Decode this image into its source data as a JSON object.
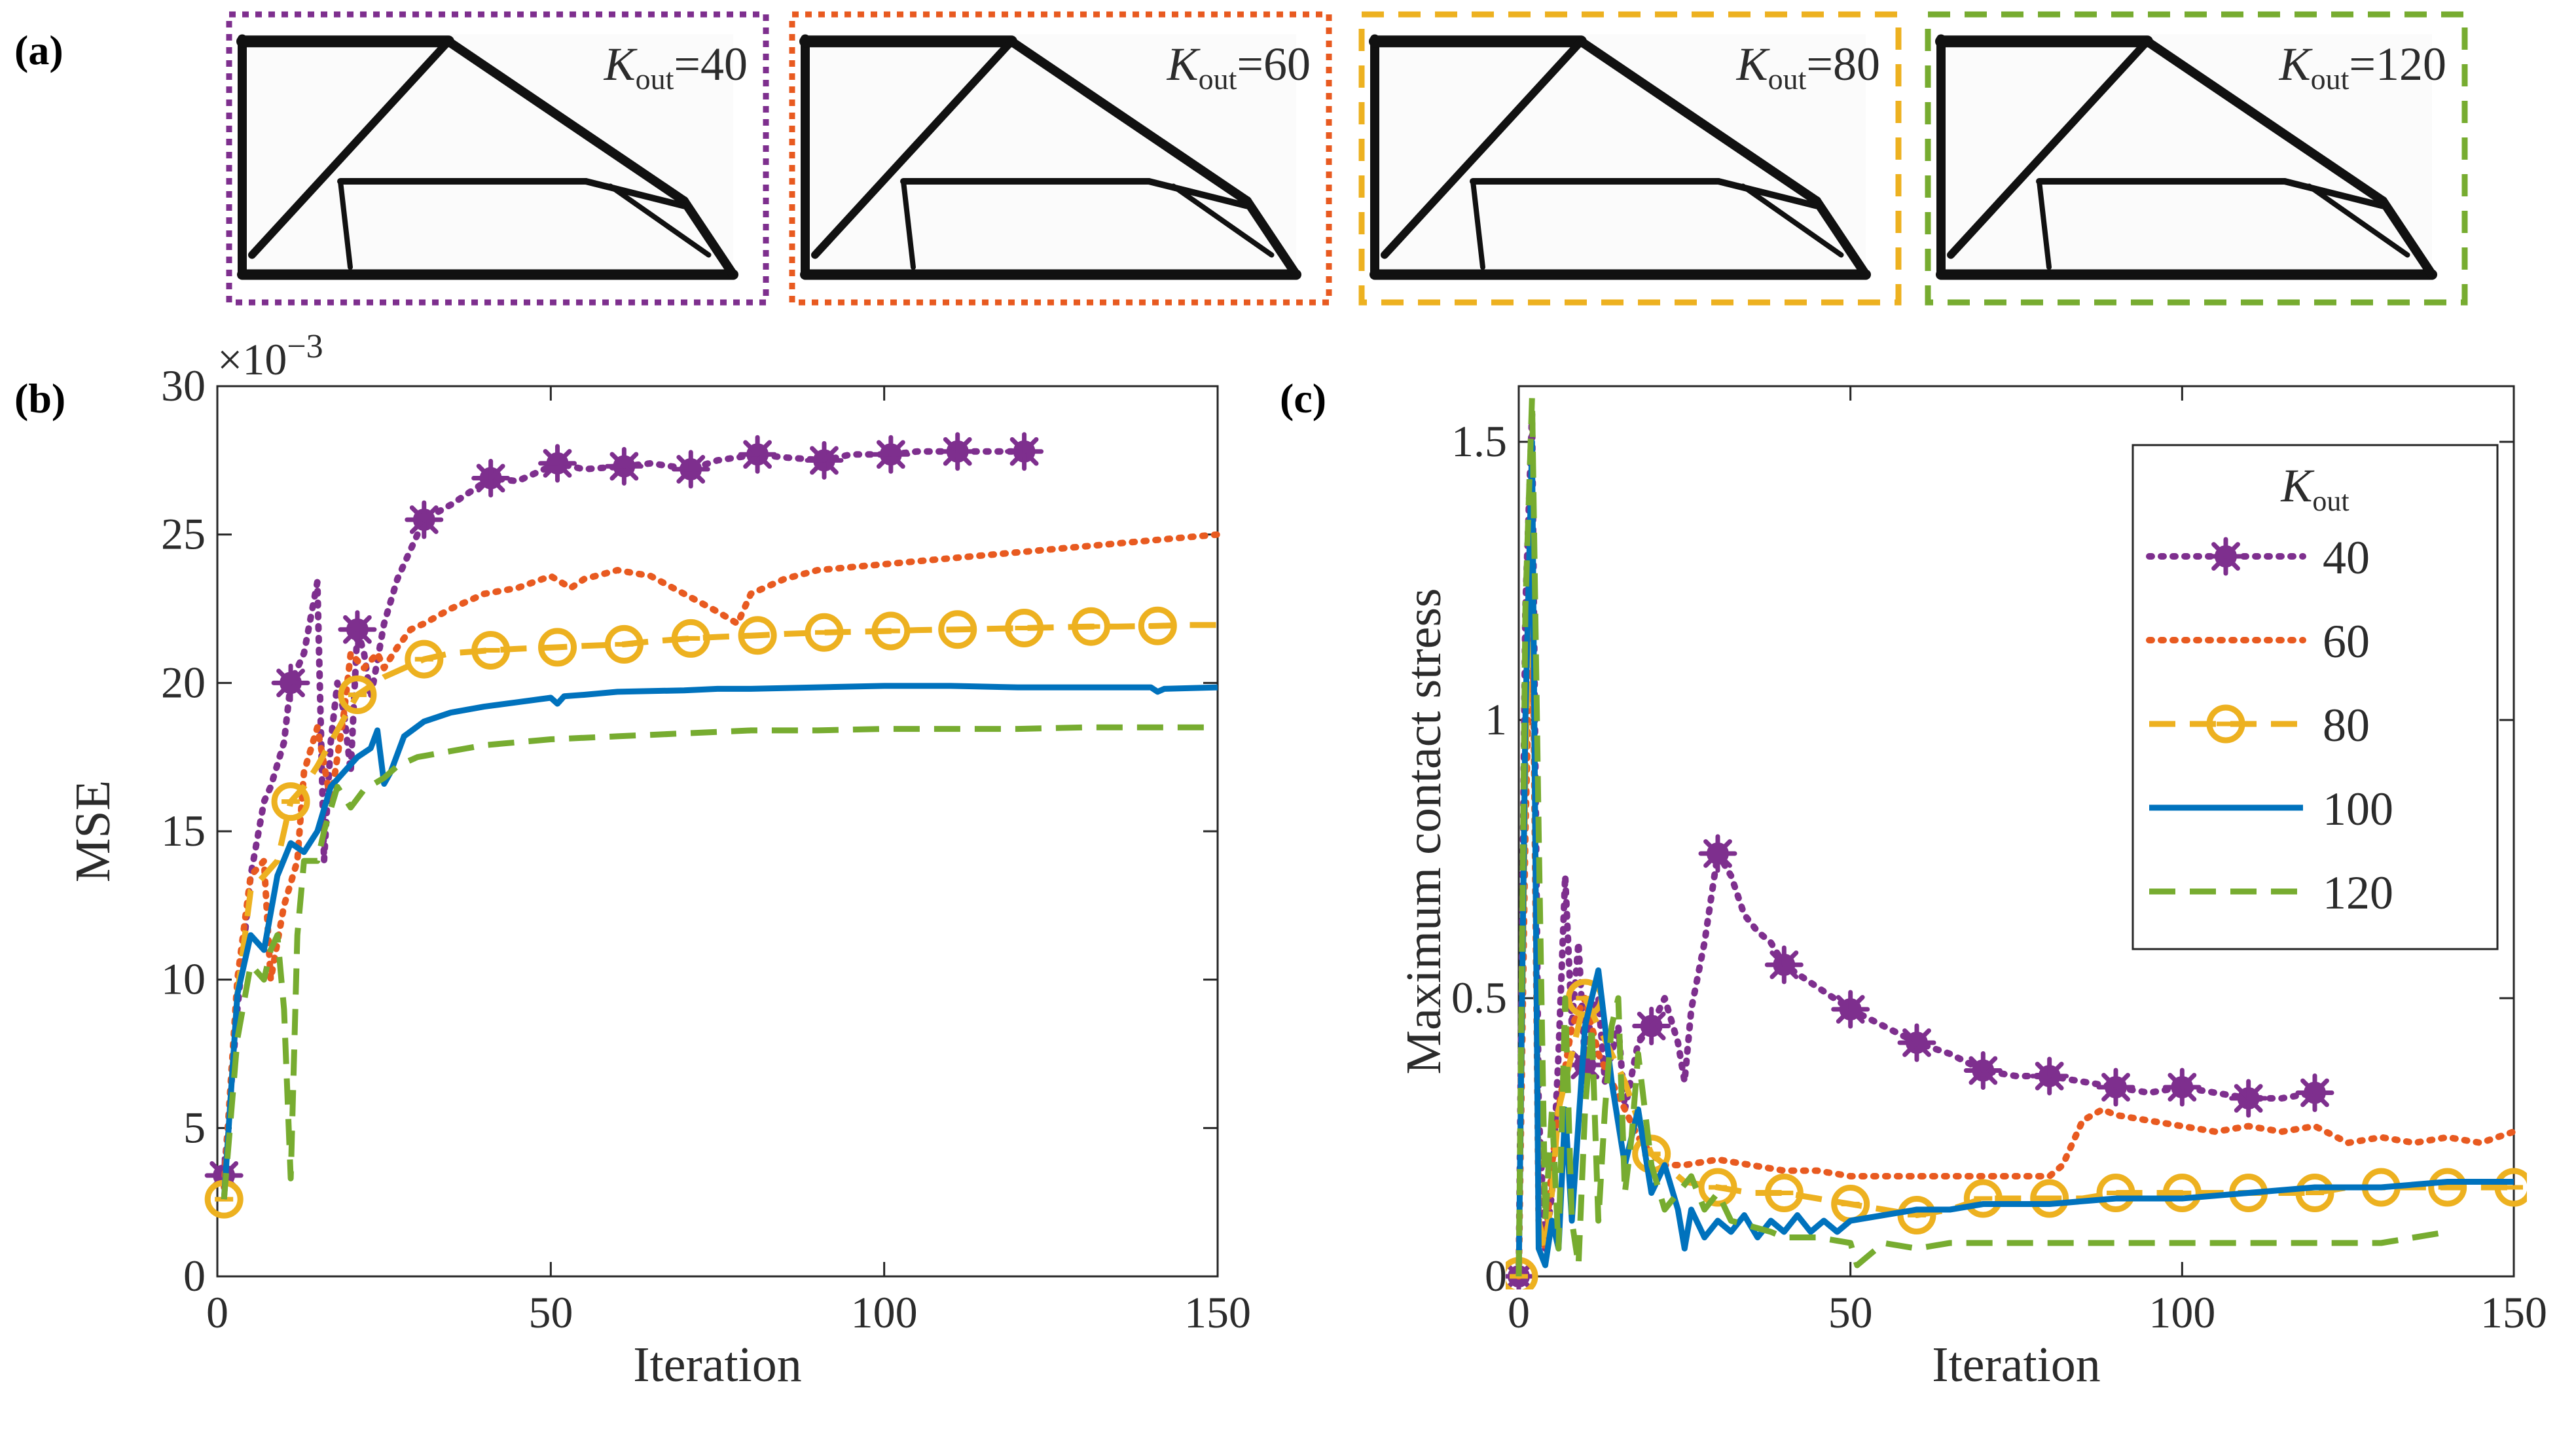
{
  "panel_labels": {
    "a": "(a)",
    "b": "(b)",
    "c": "(c)"
  },
  "designs": {
    "var": "K",
    "sub": "out",
    "items": [
      {
        "value": "=40",
        "color": "#7e2f8e",
        "style": "dotted"
      },
      {
        "value": "=60",
        "color": "#e85a20",
        "style": "dotted"
      },
      {
        "value": "=80",
        "color": "#edb120",
        "style": "dashed"
      },
      {
        "value": "=120",
        "color": "#77ac30",
        "style": "dashed"
      }
    ]
  },
  "colors": {
    "k40": "#7e2f8e",
    "k60": "#e85a20",
    "k80": "#edb120",
    "k100": "#0072bd",
    "k120": "#77ac30",
    "axis": "#262626"
  },
  "chart_data": [
    {
      "type": "line",
      "panel": "(b)",
      "title": "",
      "xlabel": "Iteration",
      "ylabel": "MSE",
      "exponent_label": "×10",
      "exponent_power": "−3",
      "xlim": [
        0,
        150
      ],
      "ylim": [
        0,
        30
      ],
      "xticks": [
        0,
        50,
        100,
        150
      ],
      "yticks": [
        0,
        5,
        10,
        15,
        20,
        25,
        30
      ],
      "series": [
        {
          "name": "40",
          "color": "#7e2f8e",
          "dash": "dot",
          "marker": "star",
          "marker_every": 10,
          "x": [
            1,
            3,
            5,
            7,
            8,
            10,
            11,
            13,
            15,
            16,
            17,
            18,
            19,
            20,
            21,
            22,
            23,
            25,
            27,
            28,
            31,
            35,
            41,
            45,
            51,
            55,
            61,
            65,
            71,
            75,
            81,
            85,
            91,
            95,
            101,
            105,
            111,
            115,
            121
          ],
          "y": [
            3.4,
            9,
            13.5,
            16,
            16.5,
            18,
            20,
            21,
            23.4,
            14,
            18,
            20,
            19,
            17,
            21.8,
            21,
            19.5,
            22,
            23.5,
            24,
            25.5,
            26,
            26.9,
            26.8,
            27.4,
            27.2,
            27.3,
            27.4,
            27.2,
            27.5,
            27.7,
            27.6,
            27.5,
            27.7,
            27.7,
            27.8,
            27.8,
            27.8,
            27.8
          ]
        },
        {
          "name": "60",
          "color": "#e85a20",
          "dash": "dot",
          "marker": "none",
          "x": [
            1,
            3,
            5,
            7,
            8,
            10,
            12,
            13,
            15,
            17,
            19,
            20,
            22,
            24,
            25,
            27,
            29,
            31,
            35,
            40,
            45,
            50,
            53,
            55,
            60,
            65,
            70,
            75,
            78,
            80,
            85,
            90,
            100,
            110,
            120,
            130,
            140,
            150
          ],
          "y": [
            3,
            10,
            13.5,
            14,
            10,
            12.5,
            14,
            17,
            18.5,
            16,
            19,
            21,
            20.5,
            21,
            20.5,
            21.2,
            21.8,
            22,
            22.5,
            23,
            23.2,
            23.6,
            23.2,
            23.5,
            23.8,
            23.6,
            23,
            22.4,
            22,
            23,
            23.5,
            23.8,
            24,
            24.2,
            24.4,
            24.6,
            24.8,
            25
          ]
        },
        {
          "name": "80",
          "color": "#edb120",
          "dash": "dash",
          "marker": "circle",
          "marker_every": 10,
          "x": [
            1,
            3,
            5,
            7,
            9,
            11,
            13,
            15,
            17,
            19,
            21,
            25,
            31,
            35,
            41,
            45,
            51,
            55,
            61,
            65,
            71,
            75,
            81,
            85,
            91,
            95,
            101,
            105,
            111,
            115,
            121,
            125,
            131,
            135,
            141,
            145,
            150
          ],
          "y": [
            2.6,
            9.5,
            13,
            13.5,
            14,
            16,
            16.5,
            17.2,
            18,
            18.8,
            19.6,
            20.2,
            20.8,
            21,
            21.1,
            21.15,
            21.2,
            21.25,
            21.3,
            21.4,
            21.5,
            21.55,
            21.6,
            21.65,
            21.7,
            21.72,
            21.75,
            21.78,
            21.8,
            21.82,
            21.85,
            21.87,
            21.9,
            21.9,
            21.92,
            21.95,
            21.95
          ]
        },
        {
          "name": "100",
          "color": "#0072bd",
          "dash": "solid",
          "marker": "none",
          "x": [
            1,
            3,
            5,
            7,
            9,
            11,
            13,
            15,
            17,
            19,
            21,
            23,
            24,
            25,
            26,
            28,
            31,
            35,
            40,
            45,
            50,
            51,
            52,
            55,
            60,
            70,
            75,
            80,
            90,
            100,
            110,
            120,
            130,
            140,
            141,
            142,
            150
          ],
          "y": [
            2.6,
            9.5,
            11.5,
            11,
            13.5,
            14.6,
            14.3,
            15,
            16.5,
            17,
            17.5,
            17.8,
            18.4,
            16.6,
            17,
            18.2,
            18.7,
            19,
            19.2,
            19.35,
            19.5,
            19.3,
            19.55,
            19.6,
            19.7,
            19.75,
            19.8,
            19.8,
            19.85,
            19.9,
            19.9,
            19.85,
            19.85,
            19.85,
            19.7,
            19.8,
            19.85
          ]
        },
        {
          "name": "120",
          "color": "#77ac30",
          "dash": "dash",
          "marker": "none",
          "x": [
            1,
            3,
            5,
            7,
            8,
            9,
            10,
            11,
            12,
            13,
            15,
            16,
            18,
            20,
            22,
            25,
            27,
            30,
            35,
            40,
            50,
            60,
            70,
            80,
            90,
            100,
            110,
            120,
            130,
            140,
            150
          ],
          "y": [
            2.6,
            8,
            10.5,
            10,
            11,
            11.5,
            9,
            3.3,
            11.5,
            14,
            14,
            15,
            16.5,
            15.8,
            16.4,
            16.8,
            17.2,
            17.5,
            17.7,
            17.9,
            18.1,
            18.2,
            18.3,
            18.4,
            18.4,
            18.45,
            18.45,
            18.45,
            18.5,
            18.5,
            18.5
          ]
        }
      ]
    },
    {
      "type": "line",
      "panel": "(c)",
      "title": "",
      "xlabel": "Iteration",
      "ylabel": "Maximum contact stress",
      "xlim": [
        0,
        150
      ],
      "ylim": [
        0,
        1.6
      ],
      "xticks": [
        0,
        50,
        100,
        150
      ],
      "yticks": [
        0,
        0.5,
        1,
        1.5
      ],
      "legend": {
        "title_var": "K",
        "title_sub": "out",
        "position": "top-right",
        "entries": [
          "40",
          "60",
          "80",
          "100",
          "120"
        ]
      },
      "series": [
        {
          "name": "40",
          "color": "#7e2f8e",
          "dash": "dot",
          "marker": "star",
          "marker_every": 10,
          "x": [
            0,
            1,
            2,
            3,
            4,
            5,
            6,
            7,
            8,
            9,
            10,
            11,
            12,
            13,
            14,
            15,
            16,
            18,
            20,
            22,
            24,
            25,
            26,
            28,
            30,
            32,
            34,
            36,
            38,
            40,
            45,
            50,
            55,
            60,
            65,
            70,
            75,
            80,
            85,
            90,
            95,
            100,
            105,
            110,
            115,
            120
          ],
          "y": [
            0,
            1.2,
            1.55,
            0.3,
            0.05,
            0.15,
            0.4,
            0.72,
            0.45,
            0.6,
            0.38,
            0.48,
            0.5,
            0.35,
            0.4,
            0.45,
            0.3,
            0.42,
            0.45,
            0.5,
            0.42,
            0.35,
            0.48,
            0.6,
            0.76,
            0.72,
            0.65,
            0.62,
            0.6,
            0.56,
            0.52,
            0.48,
            0.45,
            0.42,
            0.4,
            0.37,
            0.36,
            0.36,
            0.35,
            0.34,
            0.33,
            0.34,
            0.33,
            0.32,
            0.32,
            0.33
          ]
        },
        {
          "name": "60",
          "color": "#e85a20",
          "dash": "dot",
          "marker": "none",
          "x": [
            0,
            1,
            2,
            3,
            4,
            5,
            6,
            8,
            10,
            12,
            14,
            16,
            18,
            20,
            22,
            25,
            30,
            35,
            40,
            45,
            50,
            55,
            60,
            65,
            70,
            75,
            80,
            82,
            85,
            88,
            90,
            95,
            100,
            105,
            110,
            115,
            120,
            125,
            130,
            135,
            140,
            145,
            150
          ],
          "y": [
            0,
            0.8,
            1.3,
            0.1,
            0.05,
            0.2,
            0.3,
            0.45,
            0.5,
            0.4,
            0.35,
            0.3,
            0.25,
            0.22,
            0.2,
            0.2,
            0.21,
            0.2,
            0.19,
            0.19,
            0.18,
            0.18,
            0.18,
            0.18,
            0.18,
            0.18,
            0.18,
            0.2,
            0.28,
            0.3,
            0.29,
            0.28,
            0.27,
            0.26,
            0.27,
            0.26,
            0.27,
            0.24,
            0.25,
            0.24,
            0.25,
            0.24,
            0.26
          ]
        },
        {
          "name": "80",
          "color": "#edb120",
          "dash": "dash",
          "marker": "circle",
          "marker_every": 10,
          "x": [
            0,
            1,
            2,
            3,
            4,
            5,
            6,
            8,
            10,
            12,
            14,
            16,
            18,
            20,
            22,
            25,
            30,
            35,
            40,
            45,
            50,
            55,
            60,
            65,
            70,
            75,
            80,
            85,
            90,
            95,
            100,
            105,
            110,
            115,
            120,
            125,
            130,
            135,
            140,
            145,
            150
          ],
          "y": [
            0,
            0.9,
            1.4,
            0.1,
            0.05,
            0.15,
            0.3,
            0.4,
            0.5,
            0.45,
            0.4,
            0.35,
            0.28,
            0.22,
            0.2,
            0.17,
            0.16,
            0.15,
            0.15,
            0.14,
            0.13,
            0.12,
            0.11,
            0.12,
            0.14,
            0.14,
            0.14,
            0.14,
            0.15,
            0.15,
            0.15,
            0.15,
            0.15,
            0.15,
            0.15,
            0.16,
            0.16,
            0.16,
            0.16,
            0.16,
            0.16
          ]
        },
        {
          "name": "100",
          "color": "#0072bd",
          "dash": "solid",
          "marker": "none",
          "x": [
            0,
            1,
            2,
            3,
            4,
            5,
            6,
            7,
            8,
            10,
            12,
            14,
            16,
            18,
            20,
            22,
            24,
            25,
            26,
            28,
            30,
            32,
            34,
            36,
            38,
            40,
            42,
            44,
            46,
            48,
            50,
            55,
            60,
            65,
            70,
            80,
            90,
            100,
            110,
            120,
            130,
            140,
            150
          ],
          "y": [
            0,
            1.0,
            1.5,
            0.05,
            0.02,
            0.1,
            0.05,
            0.3,
            0.1,
            0.45,
            0.55,
            0.35,
            0.2,
            0.3,
            0.15,
            0.2,
            0.12,
            0.05,
            0.12,
            0.07,
            0.1,
            0.08,
            0.11,
            0.07,
            0.1,
            0.08,
            0.11,
            0.08,
            0.1,
            0.08,
            0.1,
            0.11,
            0.12,
            0.12,
            0.13,
            0.13,
            0.14,
            0.14,
            0.15,
            0.16,
            0.16,
            0.17,
            0.17
          ]
        },
        {
          "name": "120",
          "color": "#77ac30",
          "dash": "dash",
          "marker": "none",
          "x": [
            0,
            1,
            2,
            3,
            4,
            5,
            6,
            7,
            8,
            9,
            10,
            11,
            12,
            13,
            14,
            15,
            16,
            17,
            18,
            20,
            22,
            24,
            26,
            28,
            30,
            32,
            35,
            38,
            40,
            45,
            50,
            51,
            55,
            60,
            65,
            70,
            75,
            80,
            85,
            90,
            100,
            110,
            120,
            130,
            140
          ],
          "y": [
            0,
            1.2,
            1.58,
            0.8,
            0.1,
            0.3,
            0.05,
            0.5,
            0.1,
            0.02,
            0.3,
            0.45,
            0.1,
            0.3,
            0.45,
            0.5,
            0.15,
            0.25,
            0.4,
            0.2,
            0.12,
            0.15,
            0.18,
            0.12,
            0.15,
            0.1,
            0.09,
            0.08,
            0.07,
            0.07,
            0.06,
            0.02,
            0.06,
            0.05,
            0.06,
            0.06,
            0.06,
            0.06,
            0.06,
            0.06,
            0.06,
            0.06,
            0.06,
            0.06,
            0.08
          ]
        }
      ]
    }
  ]
}
